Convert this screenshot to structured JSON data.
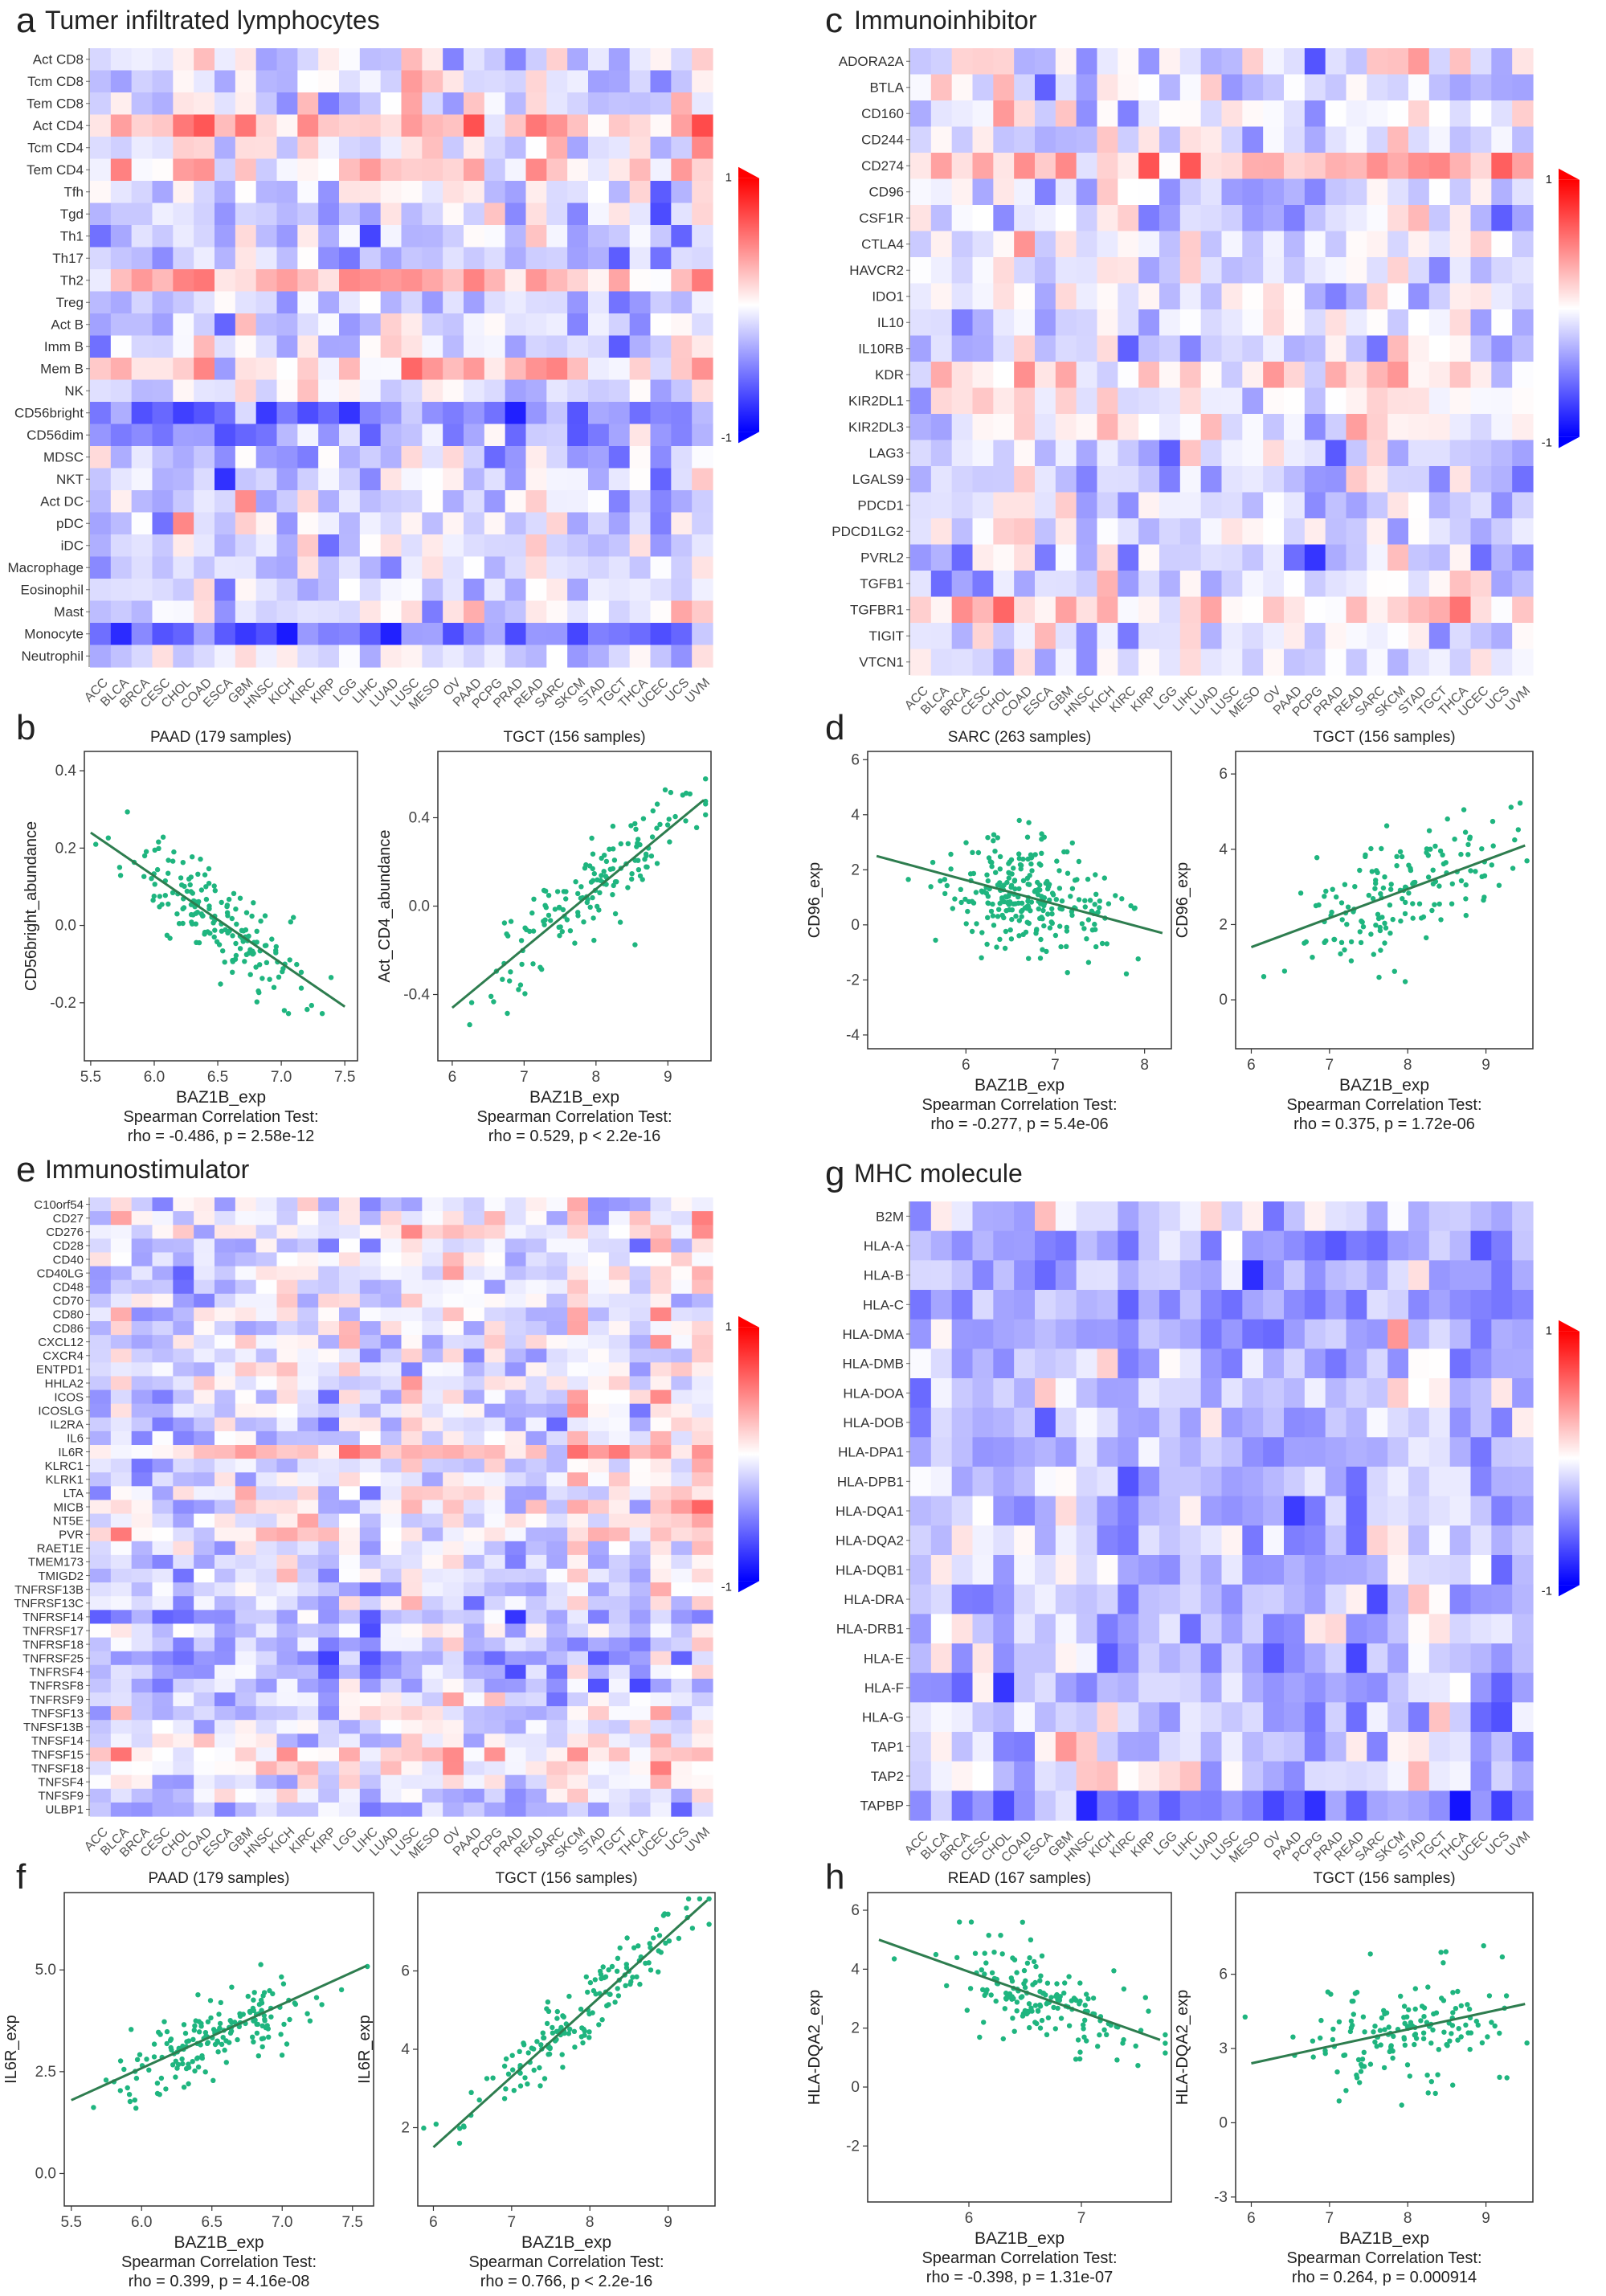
{
  "tumor_types": [
    "ACC",
    "BLCA",
    "BRCA",
    "CESC",
    "CHOL",
    "COAD",
    "ESCA",
    "GBM",
    "HNSC",
    "KICH",
    "KIRC",
    "KIRP",
    "LGG",
    "LIHC",
    "LUAD",
    "LUSC",
    "MESO",
    "OV",
    "PAAD",
    "PCPG",
    "PRAD",
    "READ",
    "SARC",
    "SKCM",
    "STAD",
    "TGCT",
    "THCA",
    "UCEC",
    "UCS",
    "UVM"
  ],
  "colors": {
    "high": "#ff0000",
    "mid": "#ffffff",
    "low": "#0000ff",
    "scatter": "#1fb57f",
    "fit": "#2e7d4f"
  },
  "chart_data": [
    {
      "panel": "a",
      "type": "heatmap",
      "title": "Tumer infiltrated lymphocytes",
      "rows": [
        "Act CD8",
        "Tcm CD8",
        "Tem CD8",
        "Act CD4",
        "Tcm CD4",
        "Tem CD4",
        "Tfh",
        "Tgd",
        "Th1",
        "Th17",
        "Th2",
        "Treg",
        "Act B",
        "Imm B",
        "Mem B",
        "NK",
        "CD56bright",
        "CD56dim",
        "MDSC",
        "NKT",
        "Act DC",
        "pDC",
        "iDC",
        "Macrophage",
        "Eosinophil",
        "Mast",
        "Monocyte",
        "Neutrophil"
      ],
      "legend": {
        "max_label": "1",
        "min_label": "-1",
        "range": [
          -1,
          1
        ]
      },
      "row_bias": [
        -0.05,
        -0.05,
        -0.1,
        0.35,
        -0.05,
        0.2,
        -0.1,
        -0.15,
        -0.2,
        -0.2,
        0.3,
        -0.15,
        -0.1,
        -0.05,
        0.15,
        -0.1,
        -0.45,
        -0.3,
        -0.2,
        -0.15,
        -0.1,
        -0.1,
        -0.1,
        -0.15,
        -0.1,
        -0.05,
        -0.5,
        -0.1
      ],
      "seed": 11
    },
    {
      "panel": "c",
      "type": "heatmap",
      "title": "Immunoinhibitor",
      "rows": [
        "ADORA2A",
        "BTLA",
        "CD160",
        "CD244",
        "CD274",
        "CD96",
        "CSF1R",
        "CTLA4",
        "HAVCR2",
        "IDO1",
        "IL10",
        "IL10RB",
        "KDR",
        "KIR2DL1",
        "KIR2DL3",
        "LAG3",
        "LGALS9",
        "PDCD1",
        "PDCD1LG2",
        "PVRL2",
        "TGFB1",
        "TGFBR1",
        "TIGIT",
        "VTCN1"
      ],
      "legend": {
        "max_label": "1",
        "min_label": "-1",
        "range": [
          -1,
          1
        ]
      },
      "row_bias": [
        -0.05,
        -0.1,
        -0.1,
        -0.15,
        0.25,
        -0.15,
        -0.15,
        -0.1,
        -0.1,
        -0.05,
        -0.1,
        -0.15,
        0.1,
        0.0,
        0.0,
        -0.15,
        -0.2,
        -0.15,
        -0.05,
        -0.2,
        -0.15,
        0.2,
        -0.1,
        -0.1
      ],
      "seed": 23
    },
    {
      "panel": "b1",
      "type": "scatter",
      "title": "PAAD (179 samples)",
      "xlabel": "BAZ1B_exp",
      "ylabel": "CD56bright_abundance",
      "stat_title": "Spearman Correlation Test:",
      "stat": "rho = -0.486, p = 2.58e-12",
      "xlim": [
        5.45,
        7.6
      ],
      "ylim": [
        -0.35,
        0.45
      ],
      "xticks": [
        5.5,
        6.0,
        6.5,
        7.0,
        7.5
      ],
      "xtick_labels": [
        "5.5",
        "6.0",
        "6.5",
        "7.0",
        "7.5"
      ],
      "yticks": [
        -0.2,
        0.0,
        0.2,
        0.4
      ],
      "ytick_labels": [
        "-0.2",
        "0.0",
        "0.2",
        "0.4"
      ],
      "fit": {
        "x": [
          5.5,
          7.5
        ],
        "y": [
          0.24,
          -0.21
        ]
      },
      "n": 179,
      "x_mean": 6.5,
      "x_sd": 0.35,
      "noise": 0.1,
      "seed": 101
    },
    {
      "panel": "b2",
      "type": "scatter",
      "title": "TGCT (156 samples)",
      "xlabel": "BAZ1B_exp",
      "ylabel": "Act_CD4_abundance",
      "stat_title": "Spearman Correlation Test:",
      "stat": "rho = 0.529, p < 2.2e-16",
      "xlim": [
        5.8,
        9.6
      ],
      "ylim": [
        -0.7,
        0.7
      ],
      "xticks": [
        6,
        7,
        8,
        9
      ],
      "xtick_labels": [
        "6",
        "7",
        "8",
        "9"
      ],
      "yticks": [
        -0.4,
        0.0,
        0.4
      ],
      "ytick_labels": [
        "-0.4",
        "0.0",
        "0.4"
      ],
      "fit": {
        "x": [
          6.0,
          9.5
        ],
        "y": [
          -0.46,
          0.48
        ]
      },
      "n": 156,
      "x_mean": 7.9,
      "x_sd": 0.7,
      "noise": 0.18,
      "seed": 102
    },
    {
      "panel": "d1",
      "type": "scatter",
      "title": "SARC (263 samples)",
      "xlabel": "BAZ1B_exp",
      "ylabel": "CD96_exp",
      "stat_title": "Spearman Correlation Test:",
      "stat": "rho = -0.277, p = 5.4e-06",
      "xlim": [
        4.9,
        8.3
      ],
      "ylim": [
        -4.5,
        6.3
      ],
      "xticks": [
        6,
        7,
        8
      ],
      "xtick_labels": [
        "6",
        "7",
        "8"
      ],
      "yticks": [
        -4,
        -2,
        0,
        2,
        4,
        6
      ],
      "ytick_labels": [
        "-4",
        "-2",
        "0",
        "2",
        "4",
        "6"
      ],
      "fit": {
        "x": [
          5.0,
          8.2
        ],
        "y": [
          2.5,
          -0.3
        ]
      },
      "n": 263,
      "x_mean": 6.7,
      "x_sd": 0.5,
      "noise": 1.7,
      "seed": 103
    },
    {
      "panel": "d2",
      "type": "scatter",
      "title": "TGCT (156 samples)",
      "xlabel": "BAZ1B_exp",
      "ylabel": "CD96_exp",
      "stat_title": "Spearman Correlation Test:",
      "stat": "rho = 0.375, p = 1.72e-06",
      "xlim": [
        5.8,
        9.6
      ],
      "ylim": [
        -1.3,
        6.6
      ],
      "xticks": [
        6,
        7,
        8,
        9
      ],
      "xtick_labels": [
        "6",
        "7",
        "8",
        "9"
      ],
      "yticks": [
        0,
        2,
        4,
        6
      ],
      "ytick_labels": [
        "0",
        "2",
        "4",
        "6"
      ],
      "fit": {
        "x": [
          6.0,
          9.5
        ],
        "y": [
          1.4,
          4.1
        ]
      },
      "n": 156,
      "x_mean": 7.9,
      "x_sd": 0.7,
      "noise": 1.3,
      "seed": 104
    },
    {
      "panel": "e",
      "type": "heatmap",
      "title": "Immunostimulator",
      "rows": [
        "C10orf54",
        "CD27",
        "CD276",
        "CD28",
        "CD40",
        "CD40LG",
        "CD48",
        "CD70",
        "CD80",
        "CD86",
        "CXCL12",
        "CXCR4",
        "ENTPD1",
        "HHLA2",
        "ICOS",
        "ICOSLG",
        "IL2RA",
        "IL6",
        "IL6R",
        "KLRC1",
        "KLRK1",
        "LTA",
        "MICB",
        "NT5E",
        "PVR",
        "RAET1E",
        "TMEM173",
        "TMIGD2",
        "TNFRSF13B",
        "TNFRSF13C",
        "TNFRSF14",
        "TNFRSF17",
        "TNFRSF18",
        "TNFRSF25",
        "TNFRSF4",
        "TNFRSF8",
        "TNFRSF9",
        "TNFSF13",
        "TNFSF13B",
        "TNFSF14",
        "TNFSF15",
        "TNFSF18",
        "TNFSF4",
        "TNFSF9",
        "ULBP1"
      ],
      "legend": {
        "max_label": "1",
        "min_label": "-1",
        "range": [
          -1,
          1
        ]
      },
      "row_bias": [
        -0.1,
        -0.05,
        0.1,
        -0.1,
        -0.05,
        -0.05,
        -0.1,
        -0.05,
        -0.1,
        -0.1,
        -0.05,
        -0.1,
        -0.05,
        0.0,
        -0.1,
        -0.05,
        -0.1,
        -0.05,
        0.3,
        -0.1,
        -0.1,
        -0.05,
        0.05,
        0.05,
        0.1,
        -0.1,
        -0.1,
        -0.1,
        -0.1,
        -0.05,
        -0.3,
        -0.15,
        -0.2,
        -0.3,
        -0.25,
        -0.2,
        -0.15,
        -0.1,
        -0.1,
        -0.05,
        0.15,
        0.05,
        -0.05,
        -0.1,
        -0.2
      ],
      "seed": 37
    },
    {
      "panel": "g",
      "type": "heatmap",
      "title": "MHC molecule",
      "rows": [
        "B2M",
        "HLA-A",
        "HLA-B",
        "HLA-C",
        "HLA-DMA",
        "HLA-DMB",
        "HLA-DOA",
        "HLA-DOB",
        "HLA-DPA1",
        "HLA-DPB1",
        "HLA-DQA1",
        "HLA-DQA2",
        "HLA-DQB1",
        "HLA-DRA",
        "HLA-DRB1",
        "HLA-E",
        "HLA-F",
        "HLA-G",
        "TAP1",
        "TAP2",
        "TAPBP"
      ],
      "legend": {
        "max_label": "1",
        "min_label": "-1",
        "range": [
          -1,
          1
        ]
      },
      "row_bias": [
        -0.15,
        -0.35,
        -0.25,
        -0.3,
        -0.3,
        -0.2,
        -0.15,
        -0.2,
        -0.2,
        -0.2,
        -0.15,
        -0.15,
        -0.15,
        -0.2,
        -0.2,
        -0.25,
        -0.25,
        -0.2,
        -0.1,
        -0.05,
        -0.45
      ],
      "seed": 49
    },
    {
      "panel": "f1",
      "type": "scatter",
      "title": "PAAD (179 samples)",
      "xlabel": "BAZ1B_exp",
      "ylabel": "IL6R_exp",
      "stat_title": "Spearman Correlation Test:",
      "stat": "rho = 0.399, p = 4.16e-08",
      "xlim": [
        5.45,
        7.65
      ],
      "ylim": [
        -0.8,
        6.9
      ],
      "xticks": [
        5.5,
        6.0,
        6.5,
        7.0,
        7.5
      ],
      "xtick_labels": [
        "5.5",
        "6.0",
        "6.5",
        "7.0",
        "7.5"
      ],
      "yticks": [
        0.0,
        2.5,
        5.0
      ],
      "ytick_labels": [
        "0.0",
        "2.5",
        "5.0"
      ],
      "fit": {
        "x": [
          5.5,
          7.6
        ],
        "y": [
          1.8,
          5.1
        ]
      },
      "n": 179,
      "x_mean": 6.5,
      "x_sd": 0.35,
      "noise": 0.8,
      "seed": 105
    },
    {
      "panel": "f2",
      "type": "scatter",
      "title": "TGCT (156 samples)",
      "xlabel": "BAZ1B_exp",
      "ylabel": "IL6R_exp",
      "stat_title": "Spearman Correlation Test:",
      "stat": "rho = 0.766, p < 2.2e-16",
      "xlim": [
        5.8,
        9.6
      ],
      "ylim": [
        0.0,
        8.0
      ],
      "xticks": [
        6,
        7,
        8,
        9
      ],
      "xtick_labels": [
        "6",
        "7",
        "8",
        "9"
      ],
      "yticks": [
        2,
        4,
        6
      ],
      "ytick_labels": [
        "2",
        "4",
        "6"
      ],
      "fit": {
        "x": [
          6.0,
          9.5
        ],
        "y": [
          1.5,
          7.8
        ]
      },
      "n": 156,
      "x_mean": 7.9,
      "x_sd": 0.7,
      "noise": 0.7,
      "seed": 106
    },
    {
      "panel": "h1",
      "type": "scatter",
      "title": "READ (167 samples)",
      "xlabel": "BAZ1B_exp",
      "ylabel": "HLA-DQA2_exp",
      "stat_title": "Spearman Correlation Test:",
      "stat": "rho = -0.398, p = 1.31e-07",
      "xlim": [
        5.1,
        7.8
      ],
      "ylim": [
        -3.9,
        6.6
      ],
      "xticks": [
        6,
        7
      ],
      "xtick_labels": [
        "6",
        "7"
      ],
      "yticks": [
        -2,
        0,
        2,
        4,
        6
      ],
      "ytick_labels": [
        "-2",
        "0",
        "2",
        "4",
        "6"
      ],
      "fit": {
        "x": [
          5.2,
          7.7
        ],
        "y": [
          5.0,
          1.6
        ]
      },
      "n": 167,
      "x_mean": 6.6,
      "x_sd": 0.45,
      "noise": 1.3,
      "seed": 107
    },
    {
      "panel": "h2",
      "type": "scatter",
      "title": "TGCT (156 samples)",
      "xlabel": "BAZ1B_exp",
      "ylabel": "HLA-DQA2_exp",
      "stat_title": "Spearman Correlation Test:",
      "stat": "rho = 0.264, p = 0.000914",
      "xlim": [
        5.8,
        9.6
      ],
      "ylim": [
        -3.2,
        9.3
      ],
      "xticks": [
        6,
        7,
        8,
        9
      ],
      "xtick_labels": [
        "6",
        "7",
        "8",
        "9"
      ],
      "yticks": [
        -3,
        0,
        3,
        6
      ],
      "ytick_labels": [
        "-3",
        "0",
        "3",
        "6"
      ],
      "fit": {
        "x": [
          6.0,
          9.5
        ],
        "y": [
          2.4,
          4.8
        ]
      },
      "n": 156,
      "x_mean": 7.9,
      "x_sd": 0.7,
      "noise": 2.0,
      "seed": 108
    }
  ],
  "panel_letters": [
    "a",
    "b",
    "c",
    "d",
    "e",
    "f",
    "g",
    "h"
  ]
}
